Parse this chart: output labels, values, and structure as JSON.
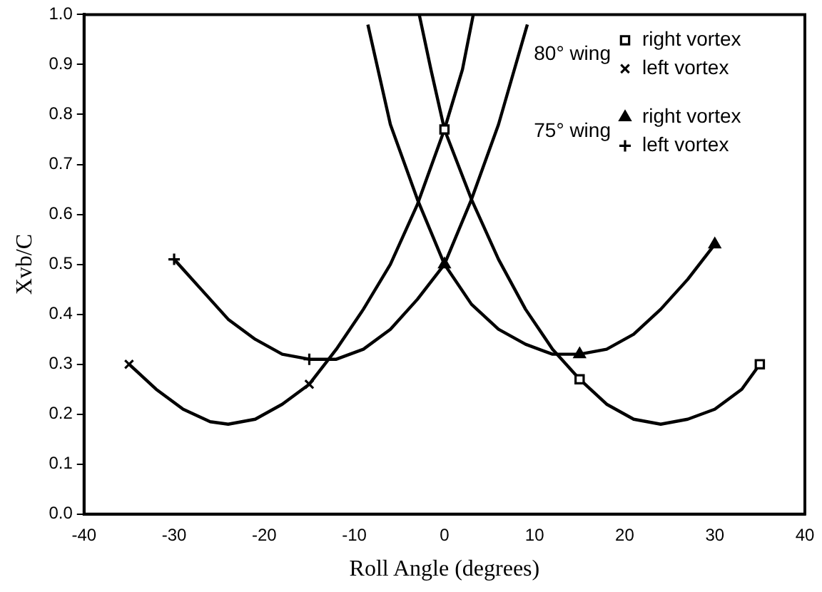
{
  "chart_data": {
    "type": "scatter",
    "xlabel": "Roll Angle (degrees)",
    "ylabel": "Xvb/C",
    "xlim": [
      -40,
      40
    ],
    "xticks": [
      -40,
      -30,
      -20,
      -10,
      0,
      10,
      20,
      30,
      40
    ],
    "ylim": [
      0,
      1
    ],
    "yticks": [
      {
        "value": 0,
        "label": "0.0"
      },
      {
        "value": 0.1,
        "label": "0.1"
      },
      {
        "value": 0.2,
        "label": "0.2"
      },
      {
        "value": 0.3,
        "label": "0.3"
      },
      {
        "value": 0.4,
        "label": "0.4"
      },
      {
        "value": 0.5,
        "label": "0.5"
      },
      {
        "value": 0.6,
        "label": "0.6"
      },
      {
        "value": 0.7,
        "label": "0.7"
      },
      {
        "value": 0.8,
        "label": "0.8"
      },
      {
        "value": 0.9,
        "label": "0.9"
      },
      {
        "value": 1,
        "label": "1.0"
      }
    ],
    "grid": false,
    "legend": "top right",
    "annotations": [
      "80° wing",
      "75° wing"
    ],
    "series": [
      {
        "name": "right vortex",
        "color": "#000000",
        "marker": "square",
        "x": [
          0,
          15,
          35
        ],
        "values": [
          0.77,
          0.27,
          0.3
        ]
      },
      {
        "name": "left vortex",
        "color": "#000000",
        "marker": "cross",
        "x": [
          -35,
          -15
        ],
        "values": [
          0.3,
          0.26
        ]
      },
      {
        "name": "right vortex",
        "color": "#000000",
        "marker": "triangle",
        "x": [
          0,
          15,
          30
        ],
        "values": [
          0.5,
          0.32,
          0.54
        ]
      },
      {
        "name": "left vortex",
        "color": "#000000",
        "marker": "plus",
        "x": [
          -30,
          -15
        ],
        "values": [
          0.51,
          0.31
        ]
      },
      {
        "type": "line",
        "color": "#000000",
        "marker": "none",
        "x": [
          -35,
          -32,
          -29,
          -26,
          -24,
          -21,
          -18,
          -15,
          -12,
          -9,
          -6,
          -3,
          0,
          2,
          3.2
        ],
        "values": [
          0.3,
          0.25,
          0.21,
          0.185,
          0.18,
          0.19,
          0.22,
          0.26,
          0.33,
          0.41,
          0.5,
          0.62,
          0.77,
          0.89,
          1.0
        ]
      },
      {
        "type": "line",
        "color": "#000000",
        "marker": "none",
        "x": [
          -2.8,
          -1.5,
          0,
          3,
          6,
          9,
          12,
          15,
          18,
          21,
          24,
          27,
          30,
          33,
          35
        ],
        "values": [
          1.0,
          0.89,
          0.77,
          0.63,
          0.51,
          0.41,
          0.33,
          0.27,
          0.22,
          0.19,
          0.18,
          0.19,
          0.21,
          0.25,
          0.3
        ]
      },
      {
        "type": "line",
        "color": "#000000",
        "marker": "none",
        "x": [
          -30,
          -27,
          -24,
          -21,
          -18,
          -15,
          -12,
          -9,
          -6,
          -3,
          0,
          3,
          6,
          9.2
        ],
        "values": [
          0.51,
          0.45,
          0.39,
          0.35,
          0.32,
          0.31,
          0.31,
          0.33,
          0.37,
          0.43,
          0.5,
          0.63,
          0.78,
          0.98
        ]
      },
      {
        "type": "line",
        "color": "#000000",
        "marker": "none",
        "x": [
          -8.5,
          -6,
          -3,
          0,
          3,
          6,
          9,
          12,
          15,
          18,
          21,
          24,
          27,
          30
        ],
        "values": [
          0.98,
          0.78,
          0.63,
          0.5,
          0.42,
          0.37,
          0.34,
          0.32,
          0.32,
          0.33,
          0.36,
          0.41,
          0.47,
          0.54
        ]
      }
    ]
  }
}
